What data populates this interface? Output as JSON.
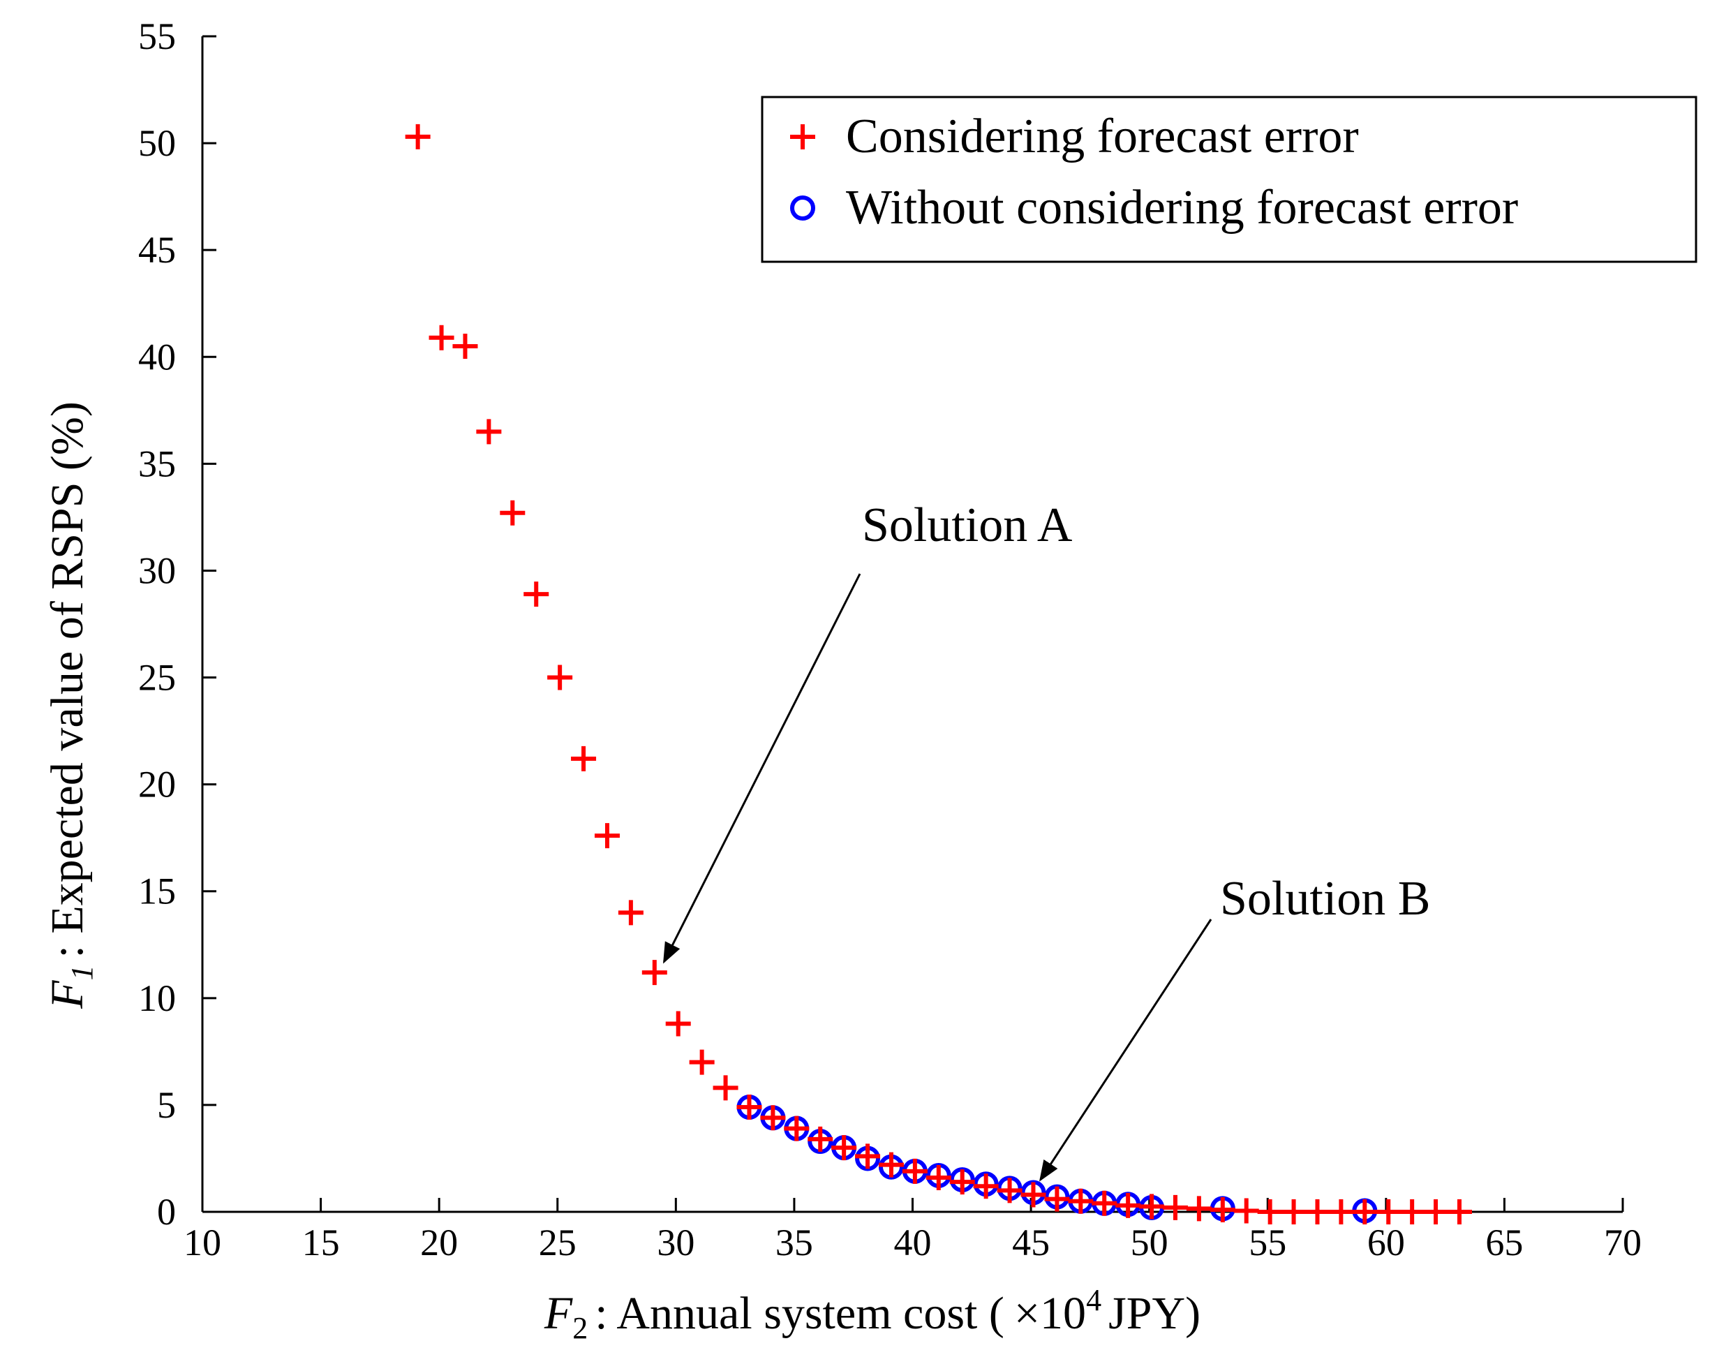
{
  "chart_data": {
    "type": "scatter",
    "title": "",
    "xlabel": {
      "var": "F",
      "sub": "2",
      "text": ": Annual system cost (",
      "mult": "×10",
      "sup": "4",
      "unit": "JPY)"
    },
    "ylabel": {
      "var": "F",
      "sub": "1",
      "text": ": Expected value of  RSPS (%)"
    },
    "xlim": [
      10,
      70
    ],
    "ylim": [
      0,
      55
    ],
    "x_ticks": [
      "10",
      "15",
      "20",
      "25",
      "30",
      "35",
      "40",
      "45",
      "50",
      "55",
      "60",
      "65",
      "70"
    ],
    "y_ticks": [
      "0",
      "5",
      "10",
      "15",
      "20",
      "25",
      "30",
      "35",
      "40",
      "45",
      "50",
      "55"
    ],
    "grid": false,
    "legend_position": "top-right",
    "series": [
      {
        "name": "Considering forecast error",
        "marker": "plus",
        "color": "#ff0000",
        "points": [
          [
            19.1,
            50.3
          ],
          [
            20.1,
            40.9
          ],
          [
            21.1,
            40.5
          ],
          [
            22.1,
            36.5
          ],
          [
            23.1,
            32.7
          ],
          [
            24.1,
            28.9
          ],
          [
            25.1,
            25.0
          ],
          [
            26.1,
            21.2
          ],
          [
            27.1,
            17.6
          ],
          [
            28.1,
            14.0
          ],
          [
            29.1,
            11.2
          ],
          [
            30.1,
            8.8
          ],
          [
            31.1,
            7.0
          ],
          [
            32.1,
            5.8
          ],
          [
            33.1,
            4.9
          ],
          [
            34.1,
            4.4
          ],
          [
            35.1,
            3.9
          ],
          [
            36.1,
            3.4
          ],
          [
            37.1,
            3.0
          ],
          [
            38.1,
            2.6
          ],
          [
            39.1,
            2.2
          ],
          [
            40.1,
            1.9
          ],
          [
            41.1,
            1.6
          ],
          [
            42.1,
            1.4
          ],
          [
            43.1,
            1.2
          ],
          [
            44.1,
            1.0
          ],
          [
            45.1,
            0.8
          ],
          [
            46.1,
            0.6
          ],
          [
            47.1,
            0.5
          ],
          [
            48.1,
            0.4
          ],
          [
            49.1,
            0.3
          ],
          [
            50.1,
            0.25
          ],
          [
            51.1,
            0.2
          ],
          [
            52.1,
            0.15
          ],
          [
            53.1,
            0.1
          ],
          [
            54.1,
            0.05
          ],
          [
            55.1,
            0.0
          ],
          [
            56.1,
            0.0
          ],
          [
            57.1,
            0.0
          ],
          [
            58.1,
            0.0
          ],
          [
            59.1,
            0.0
          ],
          [
            60.1,
            0.0
          ],
          [
            61.1,
            0.0
          ],
          [
            62.1,
            0.0
          ],
          [
            63.1,
            0.0
          ]
        ]
      },
      {
        "name": "Without considering forecast error",
        "marker": "circle",
        "color": "#0000ff",
        "points": [
          [
            33.1,
            4.9
          ],
          [
            34.1,
            4.4
          ],
          [
            35.1,
            3.9
          ],
          [
            36.1,
            3.3
          ],
          [
            37.1,
            3.0
          ],
          [
            38.1,
            2.5
          ],
          [
            39.1,
            2.1
          ],
          [
            40.1,
            1.9
          ],
          [
            41.1,
            1.7
          ],
          [
            42.1,
            1.5
          ],
          [
            43.1,
            1.3
          ],
          [
            44.1,
            1.1
          ],
          [
            45.1,
            0.9
          ],
          [
            46.1,
            0.7
          ],
          [
            47.1,
            0.5
          ],
          [
            48.1,
            0.4
          ],
          [
            49.1,
            0.35
          ],
          [
            50.1,
            0.2
          ],
          [
            53.1,
            0.15
          ],
          [
            59.1,
            0.05
          ]
        ]
      }
    ],
    "annotations": [
      {
        "text": "Solution A",
        "point": [
          29.5,
          11.7
        ]
      },
      {
        "text": "Solution B",
        "point": [
          45.4,
          1.5
        ]
      }
    ]
  }
}
